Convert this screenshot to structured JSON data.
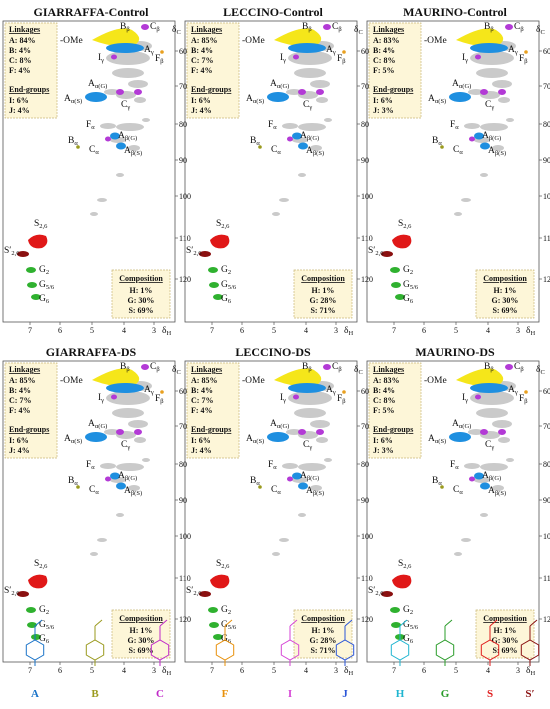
{
  "panels": [
    {
      "title": "GIARRAFFA-Control",
      "linkages_title": "Linkages",
      "linkages": [
        "A: 84%",
        "B: 4%",
        "C: 8%",
        "F: 4%"
      ],
      "endgroups_title": "End-groups",
      "endgroups": [
        "I: 6%",
        "J: 4%"
      ],
      "composition_title": "Composition",
      "composition": [
        "H: 1%",
        "G: 30%",
        "S: 69%"
      ]
    },
    {
      "title": "LECCINO-Control",
      "linkages_title": "Linkages",
      "linkages": [
        "A: 85%",
        "B: 4%",
        "C: 7%",
        "F: 4%"
      ],
      "endgroups_title": "End-groups",
      "endgroups": [
        "I: 6%",
        "J: 4%"
      ],
      "composition_title": "Composition",
      "composition": [
        "H: 1%",
        "G: 28%",
        "S: 71%"
      ]
    },
    {
      "title": "MAURINO-Control",
      "linkages_title": "Linkages",
      "linkages": [
        "A: 83%",
        "B: 4%",
        "C: 8%",
        "F: 5%"
      ],
      "endgroups_title": "End-groups",
      "endgroups": [
        "I: 6%",
        "J: 3%"
      ],
      "composition_title": "Composition",
      "composition": [
        "H: 1%",
        "G: 30%",
        "S: 69%"
      ]
    },
    {
      "title": "GIARRAFFA-DS",
      "linkages_title": "Linkages",
      "linkages": [
        "A: 85%",
        "B: 4%",
        "C: 7%",
        "F: 4%"
      ],
      "endgroups_title": "End-groups",
      "endgroups": [
        "I: 6%",
        "J: 4%"
      ],
      "composition_title": "Composition",
      "composition": [
        "H: 1%",
        "G: 30%",
        "S: 69%"
      ]
    },
    {
      "title": "LECCINO-DS",
      "linkages_title": "Linkages",
      "linkages": [
        "A: 85%",
        "B: 4%",
        "C: 7%",
        "F: 4%"
      ],
      "endgroups_title": "End-groups",
      "endgroups": [
        "I: 6%",
        "J: 4%"
      ],
      "composition_title": "Composition",
      "composition": [
        "H: 1%",
        "G: 28%",
        "S: 71%"
      ]
    },
    {
      "title": "MAURINO-DS",
      "linkages_title": "Linkages",
      "linkages": [
        "A: 83%",
        "B: 4%",
        "C: 8%",
        "F: 5%"
      ],
      "endgroups_title": "End-groups",
      "endgroups": [
        "I: 6%",
        "J: 3%"
      ],
      "composition_title": "Composition",
      "composition": [
        "H: 1%",
        "G: 30%",
        "S: 69%"
      ]
    }
  ],
  "axes": {
    "x_label": "δH",
    "y_label": "δC",
    "x_ticks": [
      "7",
      "6",
      "5",
      "4",
      "3"
    ],
    "y_ticks": [
      "60",
      "70",
      "80",
      "90",
      "100",
      "110",
      "120"
    ]
  },
  "peaks": {
    "ome": "-OMe",
    "b_beta": "Bβ",
    "c_beta": "Cβ",
    "a_gamma": "Aγ",
    "f_beta": "Fβ",
    "i_gamma": "Iγ",
    "a_alpha_g": "Aα(G)",
    "a_alpha_s": "Aα(S)",
    "c_gamma": "Cγ",
    "f_alpha": "Fα",
    "b_alpha": "Bα",
    "c_alpha": "Cα",
    "a_beta_g": "Aβ(G)",
    "a_beta_s": "Aβ(S)",
    "s26": "S2,6",
    "s26p": "S′2,6",
    "g2": "G2",
    "g56": "G5/6",
    "g6": "G6"
  },
  "structures": [
    "A",
    "B",
    "C",
    "F",
    "I",
    "J",
    "H",
    "G",
    "S",
    "S′"
  ],
  "colors": {
    "ome": "#f5e61a",
    "blue": "#1e8fe0",
    "purple": "#b33ad6",
    "orange": "#e8a020",
    "olive": "#9a9a1e",
    "red": "#e01818",
    "darkred": "#8a1010",
    "green": "#2fb12f",
    "gray": "#b8b8b8",
    "boxfill": "#fdf6d8",
    "boxborder": "#c9b87a",
    "A": "#1a73c8",
    "B": "#9a9a1e",
    "C": "#c028c8",
    "F": "#e8900a",
    "I": "#d646d6",
    "J": "#2a55d8",
    "H": "#1fb5d0",
    "G": "#2a9c2a",
    "S": "#e01c1c",
    "Sp": "#8a1010"
  }
}
